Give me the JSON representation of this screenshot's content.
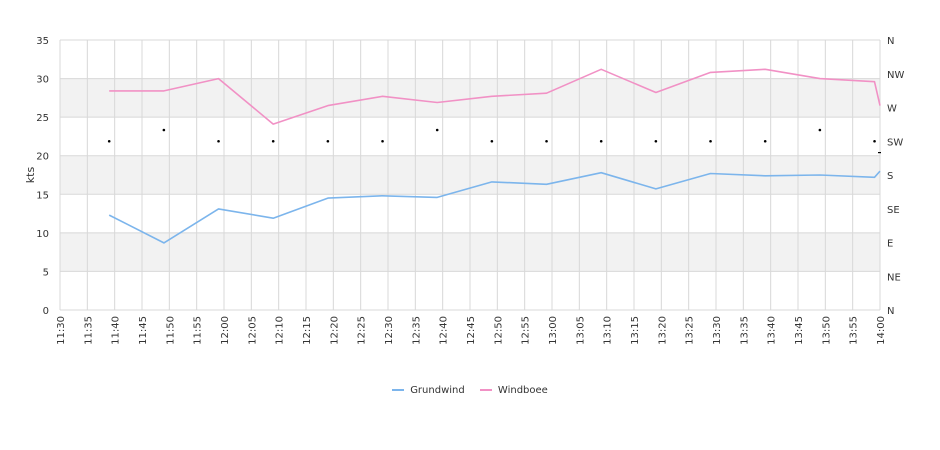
{
  "chart_data": {
    "type": "line",
    "ylabel": "kts",
    "ylim": [
      0,
      35
    ],
    "y_ticks": [
      "0",
      "5",
      "10",
      "15",
      "20",
      "25",
      "30",
      "35"
    ],
    "direction_ticks": [
      "N",
      "NE",
      "E",
      "SE",
      "S",
      "SW",
      "W",
      "NW",
      "N"
    ],
    "x_ticks": [
      "11:30",
      "11:35",
      "11:40",
      "11:45",
      "11:50",
      "11:55",
      "12:00",
      "12:05",
      "12:10",
      "12:15",
      "12:20",
      "12:25",
      "12:30",
      "12:35",
      "12:40",
      "12:45",
      "12:50",
      "12:55",
      "13:00",
      "13:05",
      "13:10",
      "13:15",
      "13:20",
      "13:25",
      "13:30",
      "13:35",
      "13:40",
      "13:45",
      "13:50",
      "13:55",
      "14:00"
    ],
    "x_range": [
      "11:30",
      "14:00"
    ],
    "series": [
      {
        "name": "Grundwind",
        "color": "#7cb5ec",
        "x": [
          "11:39",
          "11:49",
          "11:59",
          "12:09",
          "12:19",
          "12:29",
          "12:39",
          "12:49",
          "12:59",
          "13:09",
          "13:19",
          "13:29",
          "13:39",
          "13:49",
          "13:59",
          "14:00"
        ],
        "values": [
          12.3,
          8.7,
          13.1,
          11.9,
          14.5,
          14.8,
          14.6,
          16.6,
          16.3,
          17.8,
          15.7,
          17.7,
          17.4,
          17.5,
          17.2,
          18.0
        ]
      },
      {
        "name": "Windboee",
        "color": "#f191c5",
        "x": [
          "11:39",
          "11:49",
          "11:59",
          "12:09",
          "12:19",
          "12:29",
          "12:39",
          "12:49",
          "12:59",
          "13:09",
          "13:19",
          "13:29",
          "13:39",
          "13:49",
          "13:59",
          "14:00"
        ],
        "values": [
          28.4,
          28.4,
          30.0,
          24.1,
          26.5,
          27.7,
          26.9,
          27.7,
          28.1,
          31.2,
          28.2,
          30.8,
          31.2,
          30.0,
          29.6,
          26.5
        ]
      },
      {
        "name": "direction",
        "color": "#000000",
        "x": [
          "11:39",
          "11:49",
          "11:59",
          "12:09",
          "12:19",
          "12:29",
          "12:39",
          "12:49",
          "12:59",
          "13:09",
          "13:19",
          "13:29",
          "13:39",
          "13:49",
          "13:59",
          "14:00"
        ],
        "values": [
          225,
          240,
          225,
          225,
          225,
          225,
          240,
          225,
          225,
          225,
          225,
          225,
          225,
          240,
          225,
          210
        ]
      }
    ],
    "grid": true,
    "legend": "bottom"
  }
}
